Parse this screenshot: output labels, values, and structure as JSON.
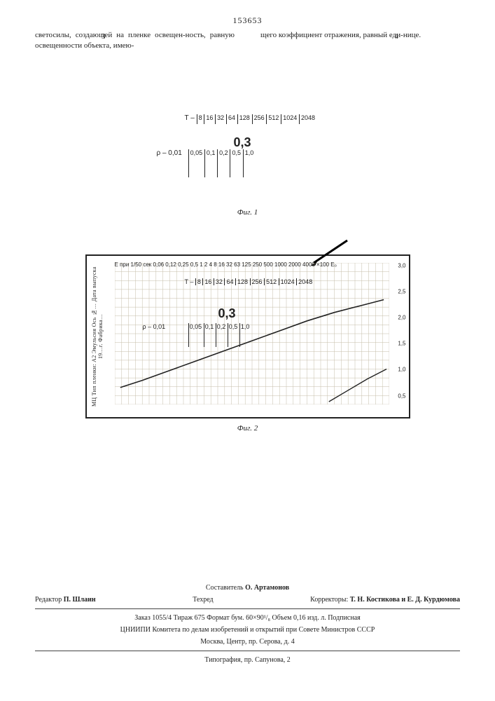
{
  "doc_number": "153653",
  "left_col_num": "3",
  "right_col_num": "4",
  "left_col_text": "светосилы, создающей на пленке освещен-ность, равную освещенности объекта, имею-",
  "right_col_text": "щего коэффициент отражения, равный еди-нице.",
  "fig1": {
    "caption": "Фиг. 1",
    "T_label": "T –",
    "T_values": [
      "8",
      "16",
      "32",
      "64",
      "128",
      "256",
      "512",
      "1024",
      "2048"
    ],
    "rho_label": "ρ – 0,01",
    "rho_values": [
      "0,05",
      "0,1",
      "0,2",
      "0,5",
      "1,0"
    ],
    "highlight": "0,3"
  },
  "fig2": {
    "caption": "Фиг. 2",
    "top_label_prefix": "E при 1/50 сек",
    "top_values": [
      "0,06",
      "0,12",
      "0,25",
      "0,5",
      "1",
      "2",
      "4",
      "8",
      "16",
      "32",
      "63",
      "125",
      "250",
      "500",
      "1000",
      "2000",
      "4000",
      "×100 E₀"
    ],
    "T_label": "T –",
    "T_values": [
      "8",
      "16",
      "32",
      "64",
      "128",
      "256",
      "512",
      "1024",
      "2048"
    ],
    "rho_label": "ρ – 0,01",
    "rho_values": [
      "0,05",
      "0,1",
      "0,2",
      "0,5",
      "1,0"
    ],
    "highlight": "0,3",
    "y_ticks": [
      "3,0",
      "2,5",
      "2,0",
      "1,5",
      "1,0",
      "0,5"
    ],
    "side_text": "МЦ   Тип пленки: А2 Эмульсия   Ось №…   Дата выпуска   19…г.   Фабрика…",
    "grid": {
      "cols": 40,
      "rows": 16,
      "minor_color": "#c5bda8",
      "major_color": "#555"
    },
    "curve_points": [
      [
        0.02,
        0.88
      ],
      [
        0.1,
        0.83
      ],
      [
        0.2,
        0.76
      ],
      [
        0.3,
        0.69
      ],
      [
        0.4,
        0.62
      ],
      [
        0.5,
        0.55
      ],
      [
        0.6,
        0.48
      ],
      [
        0.7,
        0.41
      ],
      [
        0.8,
        0.35
      ],
      [
        0.9,
        0.3
      ],
      [
        0.98,
        0.26
      ]
    ],
    "lower_tail": [
      [
        0.78,
        0.98
      ],
      [
        0.85,
        0.9
      ],
      [
        0.92,
        0.82
      ],
      [
        0.99,
        0.75
      ]
    ],
    "arrow_color": "#000"
  },
  "footer": {
    "compiler_label": "Составитель",
    "compiler_name": "О. Артамонов",
    "editor_label": "Редактор",
    "editor_name": "П. Шлаин",
    "techred_label": "Техред",
    "corrector_label": "Корректоры:",
    "corrector_names": "Т. Н. Костикова и Е. Д. Курдюмова",
    "imprint": "Заказ 1055/4   Тираж 675   Формат бум. 60×90¹/₈   Объем 0,16 изд. л.   Подписная",
    "org": "ЦНИИПИ Комитета по делам изобретений и открытий при Совете Министров СССР",
    "address": "Москва, Центр, пр. Серова, д. 4",
    "printer": "Типография, пр. Сапунова, 2"
  }
}
